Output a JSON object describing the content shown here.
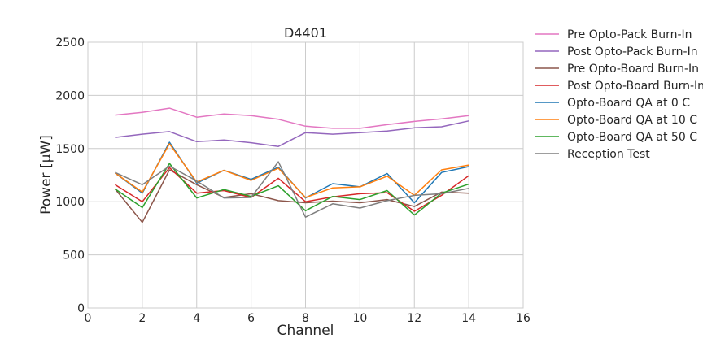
{
  "chart_data": {
    "type": "line",
    "title": "D4401",
    "xlabel": "Channel",
    "ylabel": "Power [μW]",
    "xlim": [
      0,
      16
    ],
    "ylim": [
      0,
      2500
    ],
    "xticks": [
      0,
      2,
      4,
      6,
      8,
      10,
      12,
      14,
      16
    ],
    "yticks": [
      0,
      500,
      1000,
      1500,
      2000,
      2500
    ],
    "grid": true,
    "legend_position": "outside-right",
    "x": [
      1,
      2,
      3,
      4,
      5,
      6,
      7,
      8,
      9,
      10,
      11,
      12,
      13,
      14
    ],
    "series": [
      {
        "name": "Pre Opto-Pack Burn-In",
        "color": "#e377c2",
        "values": [
          1815,
          1840,
          1880,
          1795,
          1825,
          1810,
          1775,
          1710,
          1690,
          1690,
          1725,
          1755,
          1780,
          1810
        ]
      },
      {
        "name": "Post Opto-Pack Burn-In",
        "color": "#9467bd",
        "values": [
          1605,
          1635,
          1660,
          1565,
          1580,
          1555,
          1520,
          1650,
          1635,
          1650,
          1665,
          1695,
          1705,
          1760
        ]
      },
      {
        "name": "Pre Opto-Board Burn-In",
        "color": "#8c564b",
        "values": [
          1120,
          805,
          1300,
          1160,
          1040,
          1075,
          1010,
          990,
          1005,
          990,
          1020,
          955,
          1090,
          1080
        ]
      },
      {
        "name": "Post Opto-Board Burn-In",
        "color": "#d62728",
        "values": [
          1160,
          1000,
          1320,
          1080,
          1105,
          1040,
          1220,
          1000,
          1045,
          1075,
          1085,
          910,
          1060,
          1245
        ]
      },
      {
        "name": "Opto-Board QA at 0 C",
        "color": "#1f77b4",
        "values": [
          1270,
          1080,
          1560,
          1175,
          1295,
          1210,
          1325,
          1035,
          1170,
          1140,
          1265,
          990,
          1275,
          1330
        ]
      },
      {
        "name": "Opto-Board QA at 10 C",
        "color": "#ff7f0e",
        "values": [
          1270,
          1090,
          1545,
          1185,
          1295,
          1200,
          1315,
          1040,
          1130,
          1140,
          1240,
          1060,
          1300,
          1345
        ]
      },
      {
        "name": "Opto-Board QA at 50 C",
        "color": "#2ca02c",
        "values": [
          1120,
          945,
          1360,
          1035,
          1115,
          1050,
          1150,
          915,
          1050,
          1020,
          1105,
          875,
          1080,
          1165
        ]
      },
      {
        "name": "Reception Test",
        "color": "#7f7f7f",
        "values": [
          1275,
          1160,
          1335,
          1195,
          1035,
          1040,
          1375,
          855,
          980,
          940,
          1010,
          1060,
          1075,
          1125
        ]
      }
    ]
  }
}
